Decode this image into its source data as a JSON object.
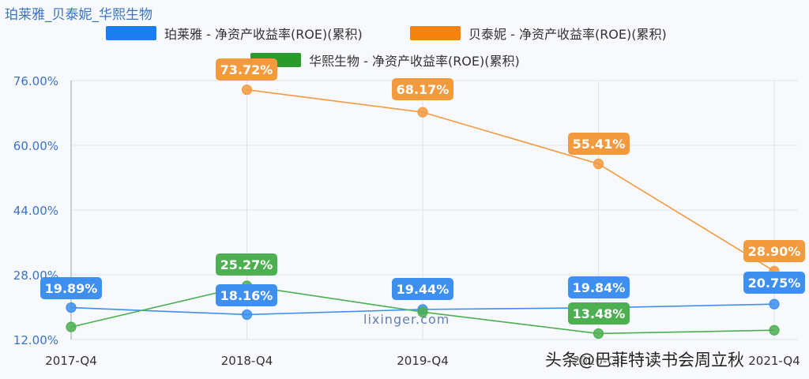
{
  "title": "珀莱雅_贝泰妮_华熙生物",
  "legend": [
    {
      "label": "珀莱雅 - 净资产收益率(ROE)(累积)",
      "color": "#1a7ef0"
    },
    {
      "label": "贝泰妮 - 净资产收益率(ROE)(累积)",
      "color": "#f5820f"
    },
    {
      "label": "华熙生物 - 净资产收益率(ROE)(累积)",
      "color": "#2a9a2a"
    }
  ],
  "watermark": "lixinger.com",
  "credit": "头条@巴菲特读书会周立秋",
  "chart_data": {
    "type": "line",
    "title": "珀莱雅_贝泰妮_华熙生物",
    "xlabel": "",
    "ylabel": "净资产收益率(ROE)(累积)",
    "categories": [
      "2017-Q4",
      "2018-Q4",
      "2019-Q4",
      "2020-Q4",
      "2021-Q4"
    ],
    "y_ticks": [
      "12.00%",
      "28.00%",
      "44.00%",
      "60.00%",
      "76.00%"
    ],
    "ylim": [
      12,
      76
    ],
    "grid": true,
    "legend_position": "top",
    "series": [
      {
        "name": "珀莱雅 - 净资产收益率(ROE)(累积)",
        "color": "#3d8ff0",
        "values": [
          19.89,
          18.16,
          19.44,
          19.84,
          20.75
        ],
        "labels": [
          "19.89%",
          "18.16%",
          "19.44%",
          "19.84%",
          "20.75%"
        ]
      },
      {
        "name": "贝泰妮 - 净资产收益率(ROE)(累积)",
        "color": "#f39a3e",
        "values": [
          null,
          73.72,
          68.17,
          55.41,
          28.9
        ],
        "labels": [
          null,
          "73.72%",
          "68.17%",
          "55.41%",
          "28.90%"
        ]
      },
      {
        "name": "华熙生物 - 净资产收益率(ROE)(累积)",
        "color": "#4caf50",
        "values": [
          15.1,
          25.27,
          18.8,
          13.48,
          14.3
        ],
        "labels": [
          null,
          "25.27%",
          null,
          "13.48%",
          null
        ]
      }
    ]
  }
}
